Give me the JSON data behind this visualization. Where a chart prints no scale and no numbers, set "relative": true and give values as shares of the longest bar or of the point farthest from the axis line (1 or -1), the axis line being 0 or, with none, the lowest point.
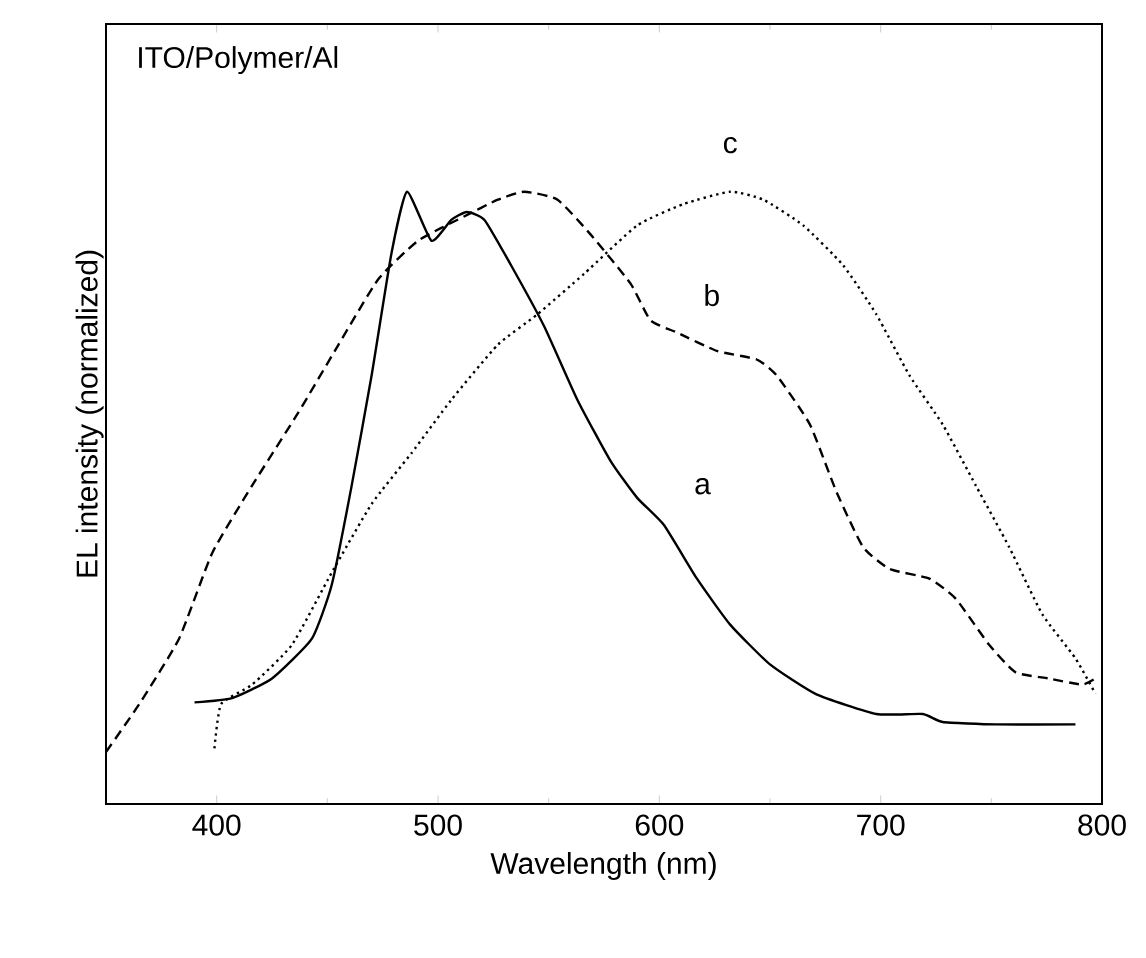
{
  "chart_data": {
    "type": "line",
    "title": "ITO/Polymer/Al",
    "xlabel": "Wavelength (nm)",
    "ylabel": "EL intensity (normalized)",
    "relative": true,
    "xlim": [
      350,
      800
    ],
    "xticks": [
      400,
      500,
      600,
      700,
      800
    ],
    "grid": false,
    "marker": "none",
    "series": [
      {
        "name": "a",
        "color": "#000000",
        "line_style": "solid",
        "x": [
          390,
          407,
          425,
          443,
          452,
          461,
          470,
          479,
          486,
          497,
          506,
          513,
          521,
          533,
          548,
          563,
          578,
          590,
          602,
          617,
          632,
          650,
          671,
          698,
          719,
          728,
          752,
          788
        ],
        "values": [
          0.166,
          0.173,
          0.205,
          0.27,
          0.358,
          0.52,
          0.7,
          0.9,
          1.0,
          0.92,
          0.954,
          0.967,
          0.954,
          0.88,
          0.78,
          0.66,
          0.56,
          0.5,
          0.456,
          0.368,
          0.293,
          0.228,
          0.179,
          0.147,
          0.147,
          0.134,
          0.13,
          0.13
        ]
      },
      {
        "name": "b",
        "color": "#000000",
        "line_style": "dashed",
        "x": [
          350,
          365,
          383,
          398,
          416,
          437,
          455,
          473,
          491,
          512,
          527,
          539,
          554,
          569,
          587,
          596,
          608,
          626,
          644,
          653,
          668,
          680,
          692,
          704,
          722,
          734,
          749,
          761,
          776,
          791,
          797
        ],
        "values": [
          0.085,
          0.163,
          0.27,
          0.41,
          0.52,
          0.64,
          0.75,
          0.857,
          0.92,
          0.96,
          0.987,
          1.0,
          0.987,
          0.93,
          0.85,
          0.79,
          0.77,
          0.74,
          0.726,
          0.7,
          0.62,
          0.51,
          0.42,
          0.384,
          0.368,
          0.335,
          0.26,
          0.215,
          0.205,
          0.195,
          0.205
        ]
      },
      {
        "name": "c",
        "color": "#000000",
        "line_style": "dotted",
        "x": [
          399,
          402,
          416,
          434,
          452,
          470,
          488,
          506,
          527,
          545,
          566,
          590,
          611,
          632,
          647,
          665,
          683,
          698,
          713,
          728,
          743,
          758,
          773,
          788,
          797
        ],
        "values": [
          0.091,
          0.163,
          0.195,
          0.26,
          0.378,
          0.49,
          0.573,
          0.66,
          0.75,
          0.8,
          0.866,
          0.945,
          0.98,
          1.0,
          0.987,
          0.945,
          0.88,
          0.8,
          0.7,
          0.62,
          0.52,
          0.42,
          0.31,
          0.238,
          0.18
        ]
      }
    ]
  }
}
